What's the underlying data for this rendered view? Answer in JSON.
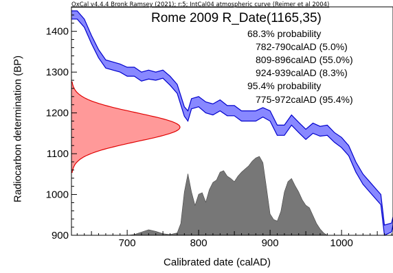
{
  "header": "OxCal v4.4.4 Bronk Ramsey (2021); r:5; IntCal04 atmospheric curve (Reimer et al 2004)",
  "chart_data": {
    "type": "area",
    "title": "Rome 2009 R_Date(1165,35)",
    "xlabel": "Calibrated date (calAD)",
    "ylabel": "Radiocarbon determination (BP)",
    "xlim": [
      622,
      1072
    ],
    "ylim": [
      900,
      1460
    ],
    "xticks": [
      700,
      800,
      900,
      1000
    ],
    "yticks": [
      900,
      1000,
      1100,
      1200,
      1300,
      1400
    ],
    "annotations": [
      "68.3% probability",
      "782-790calAD (5.0%)",
      "809-896calAD (55.0%)",
      "924-939calAD (8.3%)",
      "95.4% probability",
      "775-972calAD (95.4%)"
    ],
    "calibration_curve": {
      "x": [
        622,
        630,
        640,
        650,
        660,
        670,
        680,
        690,
        700,
        710,
        720,
        730,
        740,
        750,
        760,
        770,
        780,
        785,
        790,
        800,
        810,
        820,
        830,
        840,
        850,
        860,
        870,
        880,
        890,
        900,
        910,
        920,
        930,
        940,
        950,
        960,
        970,
        980,
        990,
        1000,
        1010,
        1020,
        1030,
        1040,
        1050,
        1055,
        1060,
        1070,
        1072
      ],
      "upper": [
        1450,
        1450,
        1430,
        1390,
        1355,
        1330,
        1325,
        1320,
        1312,
        1312,
        1300,
        1305,
        1300,
        1305,
        1290,
        1270,
        1215,
        1205,
        1235,
        1240,
        1227,
        1222,
        1232,
        1218,
        1218,
        1205,
        1205,
        1205,
        1213,
        1205,
        1170,
        1170,
        1195,
        1177,
        1160,
        1175,
        1167,
        1170,
        1152,
        1140,
        1120,
        1080,
        1050,
        1030,
        1010,
        1000,
        925,
        930,
        945
      ],
      "lower": [
        1430,
        1430,
        1410,
        1370,
        1335,
        1310,
        1305,
        1300,
        1290,
        1290,
        1278,
        1283,
        1280,
        1285,
        1268,
        1248,
        1192,
        1180,
        1210,
        1215,
        1200,
        1195,
        1205,
        1193,
        1193,
        1180,
        1180,
        1180,
        1190,
        1180,
        1145,
        1145,
        1170,
        1152,
        1135,
        1150,
        1143,
        1145,
        1128,
        1115,
        1095,
        1055,
        1025,
        1005,
        985,
        975,
        900,
        908,
        925
      ]
    },
    "radiocarbon_distribution": {
      "mean_bp": 1165,
      "sigma_bp": 35,
      "color": "#ff9999",
      "stroke": "#e00000"
    },
    "calibrated_distribution": {
      "x": [
        700,
        710,
        720,
        730,
        740,
        750,
        760,
        770,
        775,
        780,
        785,
        790,
        795,
        800,
        805,
        810,
        815,
        820,
        825,
        830,
        835,
        840,
        845,
        850,
        855,
        860,
        865,
        870,
        875,
        880,
        885,
        890,
        895,
        900,
        905,
        910,
        915,
        920,
        925,
        930,
        935,
        940,
        945,
        950,
        955,
        960,
        965,
        970,
        975,
        980
      ],
      "density": [
        0,
        0.01,
        0.04,
        0.07,
        0.05,
        0.02,
        0.01,
        0.03,
        0.15,
        0.55,
        0.78,
        0.55,
        0.38,
        0.52,
        0.54,
        0.42,
        0.58,
        0.67,
        0.7,
        0.8,
        0.82,
        0.75,
        0.72,
        0.68,
        0.75,
        0.8,
        0.84,
        0.88,
        0.94,
        0.98,
        1.0,
        0.92,
        0.6,
        0.27,
        0.2,
        0.18,
        0.3,
        0.55,
        0.68,
        0.72,
        0.63,
        0.55,
        0.45,
        0.38,
        0.35,
        0.25,
        0.15,
        0.08,
        0.03,
        0
      ]
    },
    "colors": {
      "curve_fill": "#8888ff",
      "curve_stroke": "#0000cc",
      "calibrated_fill": "#777777"
    },
    "grid": false
  }
}
